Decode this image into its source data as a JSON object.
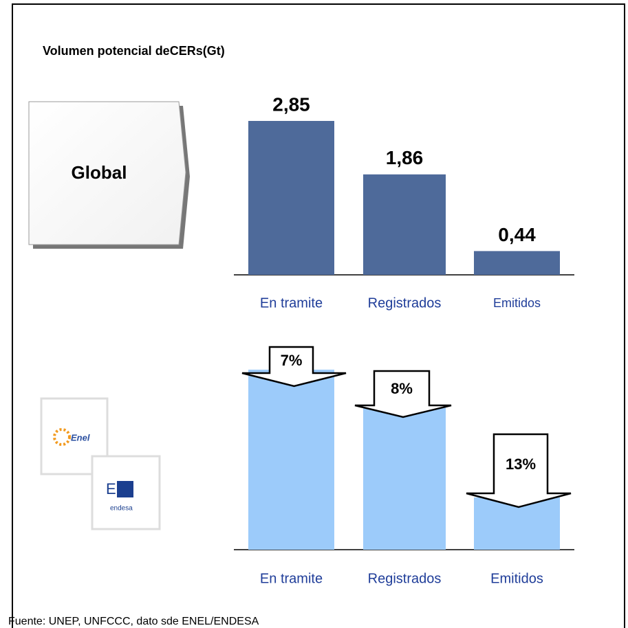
{
  "chart_data": [
    {
      "type": "bar",
      "title": "Volumen potencial deCERs(Gt)",
      "annotation": "Global",
      "categories": [
        "En tramite",
        "Registrados",
        "Emitidos"
      ],
      "values": [
        2.85,
        1.86,
        0.44
      ],
      "value_labels": [
        "2,85",
        "1,86",
        "0,44"
      ],
      "color": "#4e6a9a"
    },
    {
      "type": "arrows",
      "logos": [
        "Enel",
        "E.",
        "endesa"
      ],
      "categories": [
        "En tramite",
        "Registrados",
        "Emitidos"
      ],
      "values": [
        7,
        8,
        13
      ],
      "value_labels": [
        "7%",
        "8%",
        "13%"
      ],
      "color": "#9ccbfa"
    }
  ],
  "footnote": "Fuente: UNEP, UNFCCC, dato sde ENEL/ENDESA"
}
